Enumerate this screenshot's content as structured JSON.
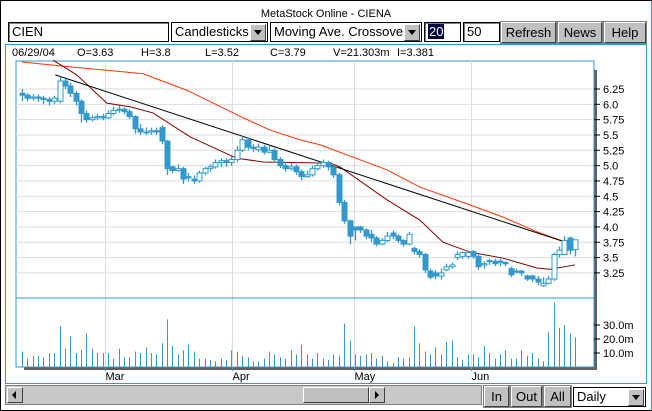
{
  "window": {
    "title": "MetaStock Online - CIENA"
  },
  "toolbar": {
    "symbol_value": "CIEN",
    "chart_type": "Candlesticks",
    "indicator": "Moving Ave. Crossover",
    "period1_value": "20",
    "period2_value": "50",
    "refresh_label": "Refresh",
    "news_label": "News",
    "help_label": "Help"
  },
  "info": {
    "date": "06/29/04",
    "open": "O=3.63",
    "high": "H=3.8",
    "low": "L=3.52",
    "close": "C=3.79",
    "volume": "V=21.303m",
    "indicator": "I=3.381"
  },
  "bottom": {
    "in_label": "In",
    "out_label": "Out",
    "all_label": "All",
    "interval": "Daily"
  },
  "icons": {
    "scroll_left": "triangle-left-icon",
    "scroll_right": "triangle-right-icon",
    "dropdown": "chevron-down-icon"
  },
  "colors": {
    "accent": "#3399cc",
    "ma_short": "#800000",
    "ma_long": "#ff3300",
    "trendline": "#000000",
    "candle": "#3399cc"
  },
  "chart_data": {
    "type": "candlestick",
    "price_ticks": [
      "3.25",
      "3.5",
      "3.75",
      "4.0",
      "4.25",
      "4.5",
      "4.75",
      "5.0",
      "5.25",
      "5.5",
      "5.75",
      "6.0",
      "6.25"
    ],
    "volume_ticks": [
      "10.0m",
      "20.0m",
      "30.0m"
    ],
    "x_ticks": [
      {
        "label": "Mar",
        "bar": 15.5
      },
      {
        "label": "Apr",
        "bar": 39.1
      },
      {
        "label": "May",
        "bar": 61.8
      },
      {
        "label": "Jun",
        "bar": 83.6
      }
    ],
    "grid": true,
    "candles": [
      [
        6.18,
        6.25,
        6.05,
        6.15
      ],
      [
        6.15,
        6.18,
        6.05,
        6.1
      ],
      [
        6.1,
        6.17,
        6.06,
        6.12
      ],
      [
        6.12,
        6.16,
        6.04,
        6.1
      ],
      [
        6.1,
        6.14,
        6.0,
        6.08
      ],
      [
        6.08,
        6.12,
        5.98,
        6.05
      ],
      [
        6.05,
        6.14,
        6.0,
        6.1
      ],
      [
        6.05,
        6.45,
        6.02,
        6.38
      ],
      [
        6.38,
        6.42,
        6.25,
        6.3
      ],
      [
        6.3,
        6.35,
        6.12,
        6.18
      ],
      [
        6.18,
        6.22,
        5.98,
        6.05
      ],
      [
        6.05,
        6.08,
        5.7,
        5.85
      ],
      [
        5.85,
        5.9,
        5.7,
        5.75
      ],
      [
        5.75,
        5.82,
        5.72,
        5.78
      ],
      [
        5.78,
        5.84,
        5.74,
        5.8
      ],
      [
        5.8,
        5.85,
        5.74,
        5.78
      ],
      [
        5.78,
        5.9,
        5.76,
        5.85
      ],
      [
        5.85,
        5.96,
        5.82,
        5.9
      ],
      [
        5.92,
        5.98,
        5.86,
        5.92
      ],
      [
        5.92,
        5.95,
        5.84,
        5.88
      ],
      [
        5.88,
        5.92,
        5.76,
        5.8
      ],
      [
        5.8,
        5.82,
        5.52,
        5.6
      ],
      [
        5.6,
        5.68,
        5.5,
        5.55
      ],
      [
        5.55,
        5.62,
        5.5,
        5.55
      ],
      [
        5.55,
        5.62,
        5.5,
        5.57
      ],
      [
        5.57,
        5.62,
        5.5,
        5.55
      ],
      [
        5.62,
        5.66,
        5.35,
        5.4
      ],
      [
        5.4,
        5.42,
        4.85,
        4.95
      ],
      [
        4.98,
        5.0,
        4.88,
        4.92
      ],
      [
        4.92,
        5.02,
        4.9,
        4.95
      ],
      [
        4.95,
        4.98,
        4.7,
        4.78
      ],
      [
        4.82,
        4.88,
        4.74,
        4.8
      ],
      [
        4.78,
        4.84,
        4.7,
        4.75
      ],
      [
        4.75,
        4.92,
        4.72,
        4.88
      ],
      [
        4.88,
        4.98,
        4.84,
        4.95
      ],
      [
        4.95,
        5.02,
        4.9,
        4.98
      ],
      [
        4.98,
        5.1,
        4.95,
        5.05
      ],
      [
        5.05,
        5.12,
        4.98,
        5.08
      ],
      [
        5.08,
        5.12,
        4.98,
        5.05
      ],
      [
        5.05,
        5.15,
        5.0,
        5.1
      ],
      [
        5.1,
        5.32,
        5.05,
        5.25
      ],
      [
        5.25,
        5.48,
        5.22,
        5.42
      ],
      [
        5.42,
        5.46,
        5.25,
        5.3
      ],
      [
        5.3,
        5.35,
        5.22,
        5.28
      ],
      [
        5.26,
        5.36,
        5.22,
        5.3
      ],
      [
        5.3,
        5.34,
        5.18,
        5.22
      ],
      [
        5.22,
        5.32,
        5.2,
        5.25
      ],
      [
        5.25,
        5.28,
        5.05,
        5.1
      ],
      [
        5.1,
        5.14,
        4.96,
        5.0
      ],
      [
        5.0,
        5.06,
        4.9,
        4.95
      ],
      [
        4.95,
        5.04,
        4.92,
        4.98
      ],
      [
        4.98,
        5.02,
        4.85,
        4.9
      ],
      [
        4.9,
        4.94,
        4.76,
        4.82
      ],
      [
        4.82,
        4.92,
        4.8,
        4.85
      ],
      [
        4.85,
        5.0,
        4.82,
        4.95
      ],
      [
        4.95,
        5.05,
        4.92,
        5.0
      ],
      [
        5.0,
        5.1,
        4.96,
        5.05
      ],
      [
        5.05,
        5.08,
        4.92,
        4.98
      ],
      [
        4.98,
        5.02,
        4.8,
        4.85
      ],
      [
        4.85,
        4.88,
        4.35,
        4.4
      ],
      [
        4.4,
        4.44,
        4.05,
        4.1
      ],
      [
        4.1,
        4.12,
        3.72,
        3.85
      ],
      [
        4.0,
        4.0,
        3.78,
        3.95
      ],
      [
        4.0,
        4.02,
        3.9,
        3.95
      ],
      [
        3.95,
        3.98,
        3.8,
        3.85
      ],
      [
        3.88,
        3.95,
        3.75,
        3.82
      ],
      [
        3.82,
        3.85,
        3.68,
        3.72
      ],
      [
        3.72,
        3.82,
        3.7,
        3.78
      ],
      [
        3.78,
        3.92,
        3.75,
        3.85
      ],
      [
        3.9,
        3.94,
        3.8,
        3.85
      ],
      [
        3.85,
        3.88,
        3.74,
        3.78
      ],
      [
        3.78,
        3.8,
        3.68,
        3.72
      ],
      [
        3.72,
        3.92,
        3.7,
        3.88
      ],
      [
        3.65,
        3.68,
        3.55,
        3.6
      ],
      [
        3.6,
        3.64,
        3.5,
        3.55
      ],
      [
        3.55,
        3.58,
        3.25,
        3.3
      ],
      [
        3.28,
        3.32,
        3.15,
        3.18
      ],
      [
        3.25,
        3.3,
        3.15,
        3.2
      ],
      [
        3.2,
        3.32,
        3.14,
        3.25
      ],
      [
        3.3,
        3.4,
        3.28,
        3.35
      ],
      [
        3.35,
        3.42,
        3.32,
        3.38
      ],
      [
        3.5,
        3.6,
        3.46,
        3.55
      ],
      [
        3.52,
        3.6,
        3.48,
        3.58
      ],
      [
        3.52,
        3.6,
        3.48,
        3.58
      ],
      [
        3.6,
        3.62,
        3.48,
        3.52
      ],
      [
        3.52,
        3.55,
        3.3,
        3.35
      ],
      [
        3.38,
        3.44,
        3.32,
        3.4
      ],
      [
        3.45,
        3.48,
        3.38,
        3.45
      ],
      [
        3.44,
        3.48,
        3.36,
        3.4
      ],
      [
        3.44,
        3.48,
        3.36,
        3.42
      ],
      [
        3.42,
        3.44,
        3.36,
        3.4
      ],
      [
        3.32,
        3.35,
        3.18,
        3.22
      ],
      [
        3.28,
        3.32,
        3.24,
        3.28
      ],
      [
        3.28,
        3.3,
        3.2,
        3.25
      ],
      [
        3.2,
        3.22,
        3.12,
        3.15
      ],
      [
        3.2,
        3.22,
        3.1,
        3.15
      ],
      [
        3.15,
        3.2,
        3.05,
        3.1
      ],
      [
        3.04,
        3.18,
        3.02,
        3.08
      ],
      [
        3.08,
        3.2,
        3.06,
        3.15
      ],
      [
        3.15,
        3.58,
        3.12,
        3.55
      ],
      [
        3.55,
        3.68,
        3.5,
        3.62
      ],
      [
        3.55,
        3.85,
        3.54,
        3.78
      ],
      [
        3.82,
        3.84,
        3.55,
        3.62
      ],
      [
        3.63,
        3.8,
        3.52,
        3.79
      ]
    ],
    "volume_m": [
      11,
      6,
      8,
      8,
      7,
      10,
      10,
      29,
      13,
      22,
      10,
      12,
      24,
      13,
      10,
      10,
      10,
      6,
      13,
      7,
      7,
      11,
      10,
      14,
      10,
      9,
      17,
      34,
      15,
      9,
      12,
      16,
      11,
      6,
      6,
      5,
      4,
      6,
      5,
      12,
      11,
      8,
      7,
      4,
      4,
      6,
      11,
      9,
      7,
      6,
      12,
      9,
      16,
      9,
      6,
      10,
      6,
      5,
      9,
      8,
      31,
      19,
      9,
      8,
      9,
      10,
      6,
      8,
      4,
      3,
      7,
      6,
      7,
      29,
      17,
      11,
      9,
      14,
      9,
      18,
      19,
      7,
      5,
      9,
      9,
      7,
      15,
      10,
      6,
      9,
      12,
      6,
      6,
      12,
      8,
      10,
      6,
      4,
      25,
      46,
      28,
      30,
      24,
      21.303
    ],
    "ma_short": [
      [
        5.8,
        6.72
      ],
      [
        10.2,
        6.48
      ],
      [
        15.8,
        6.02
      ],
      [
        20.1,
        5.96
      ],
      [
        24.4,
        5.86
      ],
      [
        31.3,
        5.47
      ],
      [
        40,
        5.12
      ],
      [
        44.9,
        5.06
      ],
      [
        57.4,
        5.04
      ],
      [
        59.2,
        4.98
      ],
      [
        68,
        4.44
      ],
      [
        74.1,
        4.11
      ],
      [
        78.4,
        3.75
      ],
      [
        83.4,
        3.59
      ],
      [
        89.6,
        3.49
      ],
      [
        95.9,
        3.33
      ],
      [
        98.3,
        3.31
      ],
      [
        103,
        3.38
      ]
    ],
    "ma_long": [
      [
        0,
        6.69
      ],
      [
        10.2,
        6.6
      ],
      [
        22.5,
        6.5
      ],
      [
        30.7,
        6.23
      ],
      [
        41.2,
        5.78
      ],
      [
        46.2,
        5.58
      ],
      [
        51.8,
        5.42
      ],
      [
        55.5,
        5.34
      ],
      [
        61.6,
        5.14
      ],
      [
        68,
        4.93
      ],
      [
        74.1,
        4.65
      ],
      [
        83.4,
        4.36
      ],
      [
        89.6,
        4.16
      ],
      [
        95.9,
        3.92
      ],
      [
        103,
        3.7
      ]
    ],
    "trendline": [
      [
        6.2,
        6.48
      ],
      [
        103,
        3.7
      ]
    ]
  }
}
